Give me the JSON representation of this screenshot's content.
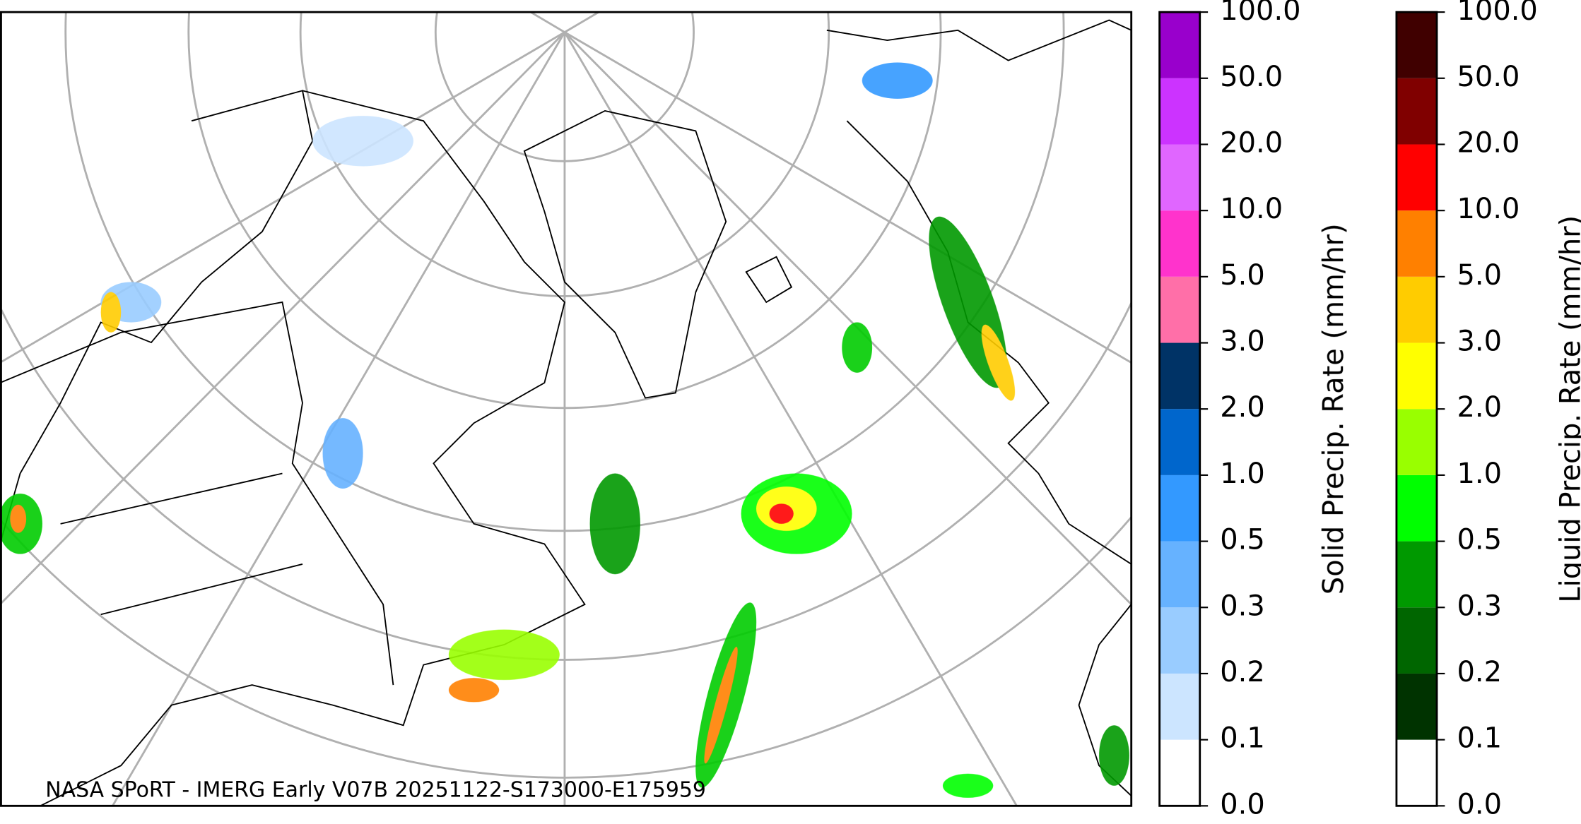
{
  "map": {
    "credit": "NASA SPoRT - IMERG Early V07B 20251122-S173000-E175959"
  },
  "colorbars": [
    {
      "label": "Solid Precip. Rate (mm/hr)",
      "ticks": [
        {
          "value": 0,
          "label": "0.0"
        },
        0.1,
        0.2,
        0.3,
        0.5,
        {
          "value": 1,
          "label": "1.0"
        },
        {
          "value": 2,
          "label": "2.0"
        },
        {
          "value": 3,
          "label": "3.0"
        },
        {
          "value": 5,
          "label": "5.0"
        },
        {
          "value": 10,
          "label": "10.0"
        },
        {
          "value": 20,
          "label": "20.0"
        },
        {
          "value": 50,
          "label": "50.0"
        },
        {
          "value": 100,
          "label": "100.0"
        }
      ],
      "colors": [
        "#ffffff",
        "#cce5ff",
        "#99ccff",
        "#66b2ff",
        "#3399ff",
        "#0066cc",
        "#003366",
        "#ff6fa8",
        "#ff33cc",
        "#e066ff",
        "#cc33ff",
        "#9900cc"
      ]
    },
    {
      "label": "Liquid Precip. Rate (mm/hr)",
      "ticks": [
        {
          "value": 0,
          "label": "0.0"
        },
        0.1,
        0.2,
        0.3,
        0.5,
        {
          "value": 1,
          "label": "1.0"
        },
        {
          "value": 2,
          "label": "2.0"
        },
        {
          "value": 3,
          "label": "3.0"
        },
        {
          "value": 5,
          "label": "5.0"
        },
        {
          "value": 10,
          "label": "10.0"
        },
        {
          "value": 20,
          "label": "20.0"
        },
        {
          "value": 50,
          "label": "50.0"
        },
        {
          "value": 100,
          "label": "100.0"
        }
      ],
      "colors": [
        "#ffffff",
        "#003300",
        "#006600",
        "#009900",
        "#00ff00",
        "#99ff00",
        "#ffff00",
        "#ffcc00",
        "#ff8000",
        "#ff0000",
        "#800000",
        "#400000"
      ]
    }
  ]
}
